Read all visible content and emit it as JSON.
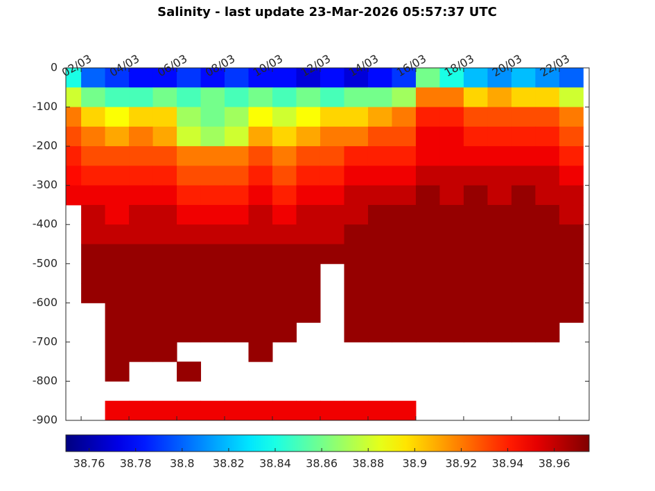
{
  "chart_data": {
    "type": "heatmap",
    "title": "Salinity - last update 23-Mar-2026 05:57:37 UTC",
    "colormap": "jet",
    "x": [
      1.5,
      2.5,
      3.5,
      4.5,
      5.5,
      6.5,
      7.5,
      8.5,
      9.5,
      10.5,
      11.5,
      12.5,
      13.5,
      14.5,
      15.5,
      16.5,
      17.5,
      18.5,
      19.5,
      20.5,
      21.5,
      22.5
    ],
    "y": [
      -25,
      -75,
      -125,
      -175,
      -225,
      -275,
      -325,
      -375,
      -425,
      -475,
      -525,
      -575,
      -625,
      -675,
      -725,
      -775,
      -825,
      -875
    ],
    "values": [
      [
        38.84,
        38.8,
        38.79,
        38.78,
        38.78,
        38.79,
        38.78,
        38.79,
        38.78,
        38.78,
        38.77,
        38.78,
        38.77,
        38.78,
        38.79,
        38.86,
        38.84,
        38.82,
        38.81,
        38.82,
        38.81,
        38.8
      ],
      [
        38.88,
        38.86,
        38.85,
        38.85,
        38.86,
        38.85,
        38.86,
        38.85,
        38.86,
        38.85,
        38.86,
        38.85,
        38.86,
        38.86,
        38.87,
        38.92,
        38.92,
        38.9,
        38.91,
        38.9,
        38.9,
        38.88
      ],
      [
        38.92,
        38.9,
        38.89,
        38.9,
        38.9,
        38.87,
        38.86,
        38.87,
        38.89,
        38.88,
        38.89,
        38.9,
        38.9,
        38.91,
        38.92,
        38.94,
        38.94,
        38.93,
        38.93,
        38.93,
        38.93,
        38.92
      ],
      [
        38.93,
        38.92,
        38.91,
        38.92,
        38.91,
        38.88,
        38.87,
        38.88,
        38.91,
        38.9,
        38.91,
        38.92,
        38.92,
        38.93,
        38.93,
        38.95,
        38.95,
        38.94,
        38.94,
        38.94,
        38.94,
        38.93
      ],
      [
        38.94,
        38.93,
        38.93,
        38.93,
        38.93,
        38.92,
        38.92,
        38.92,
        38.93,
        38.92,
        38.93,
        38.93,
        38.94,
        38.94,
        38.94,
        38.95,
        38.95,
        38.95,
        38.95,
        38.95,
        38.95,
        38.94
      ],
      [
        38.945,
        38.94,
        38.94,
        38.94,
        38.94,
        38.93,
        38.93,
        38.93,
        38.94,
        38.93,
        38.94,
        38.94,
        38.95,
        38.95,
        38.95,
        38.96,
        38.96,
        38.96,
        38.96,
        38.96,
        38.96,
        38.95
      ],
      [
        38.95,
        38.95,
        38.95,
        38.95,
        38.95,
        38.94,
        38.94,
        38.94,
        38.95,
        38.94,
        38.95,
        38.95,
        38.96,
        38.96,
        38.96,
        38.97,
        38.96,
        38.97,
        38.96,
        38.97,
        38.96,
        38.96
      ],
      [
        null,
        38.96,
        38.95,
        38.96,
        38.96,
        38.95,
        38.95,
        38.95,
        38.96,
        38.95,
        38.96,
        38.96,
        38.96,
        38.97,
        38.97,
        38.97,
        38.97,
        38.97,
        38.97,
        38.97,
        38.97,
        38.96
      ],
      [
        null,
        38.96,
        38.96,
        38.96,
        38.96,
        38.96,
        38.96,
        38.96,
        38.96,
        38.96,
        38.96,
        38.96,
        38.97,
        38.97,
        38.97,
        38.97,
        38.97,
        38.97,
        38.97,
        38.97,
        38.97,
        38.97
      ],
      [
        null,
        38.97,
        38.97,
        38.97,
        38.97,
        38.97,
        38.97,
        38.97,
        38.97,
        38.97,
        38.97,
        38.97,
        38.97,
        38.97,
        38.97,
        38.97,
        38.97,
        38.97,
        38.97,
        38.97,
        38.97,
        38.97
      ],
      [
        null,
        38.97,
        38.97,
        38.97,
        38.97,
        38.97,
        38.97,
        38.97,
        38.97,
        38.97,
        38.97,
        null,
        38.97,
        38.97,
        38.97,
        38.97,
        38.97,
        38.97,
        38.97,
        38.97,
        38.97,
        38.97
      ],
      [
        null,
        38.97,
        38.97,
        38.97,
        38.97,
        38.97,
        38.97,
        38.97,
        38.97,
        38.97,
        38.97,
        null,
        38.97,
        38.97,
        38.97,
        38.97,
        38.97,
        38.97,
        38.97,
        38.97,
        38.97,
        38.97
      ],
      [
        null,
        null,
        38.97,
        38.97,
        38.97,
        38.97,
        38.97,
        38.97,
        38.97,
        38.97,
        38.97,
        null,
        38.97,
        38.97,
        38.97,
        38.97,
        38.97,
        38.97,
        38.97,
        38.97,
        38.97,
        38.97
      ],
      [
        null,
        null,
        38.97,
        38.97,
        38.97,
        38.97,
        38.97,
        38.97,
        38.97,
        38.97,
        null,
        null,
        38.97,
        38.97,
        38.97,
        38.97,
        38.97,
        38.97,
        38.97,
        38.97,
        38.97,
        null
      ],
      [
        null,
        null,
        38.97,
        38.97,
        38.97,
        null,
        null,
        null,
        38.97,
        null,
        null,
        null,
        null,
        null,
        null,
        null,
        null,
        null,
        null,
        null,
        null,
        null
      ],
      [
        null,
        null,
        38.97,
        null,
        null,
        38.97,
        null,
        null,
        null,
        null,
        null,
        null,
        null,
        null,
        null,
        null,
        null,
        null,
        null,
        null,
        null,
        null
      ],
      [
        null,
        null,
        null,
        null,
        null,
        null,
        null,
        null,
        null,
        null,
        null,
        null,
        null,
        null,
        null,
        null,
        null,
        null,
        null,
        null,
        null,
        null
      ],
      [
        null,
        null,
        38.95,
        38.95,
        38.95,
        38.95,
        38.95,
        38.95,
        38.95,
        38.95,
        38.95,
        38.95,
        38.95,
        38.95,
        38.95,
        null,
        null,
        null,
        null,
        null,
        null,
        null
      ]
    ],
    "xlim": [
      1.36,
      23.25
    ],
    "xticks": [
      {
        "value": 2,
        "label": "02/03"
      },
      {
        "value": 4,
        "label": "04/03"
      },
      {
        "value": 6,
        "label": "06/03"
      },
      {
        "value": 8,
        "label": "08/03"
      },
      {
        "value": 10,
        "label": "10/03"
      },
      {
        "value": 12,
        "label": "12/03"
      },
      {
        "value": 14,
        "label": "14/03"
      },
      {
        "value": 16,
        "label": "16/03"
      },
      {
        "value": 18,
        "label": "18/03"
      },
      {
        "value": 20,
        "label": "20/03"
      },
      {
        "value": 22,
        "label": "22/03"
      }
    ],
    "ylim": [
      -900,
      0
    ],
    "yticks": [
      -900,
      -800,
      -700,
      -600,
      -500,
      -400,
      -300,
      -200,
      -100,
      0
    ],
    "clim": [
      38.75,
      38.975
    ],
    "cticks": [
      38.76,
      38.78,
      38.8,
      38.82,
      38.84,
      38.86,
      38.88,
      38.9,
      38.92,
      38.94,
      38.96
    ]
  }
}
